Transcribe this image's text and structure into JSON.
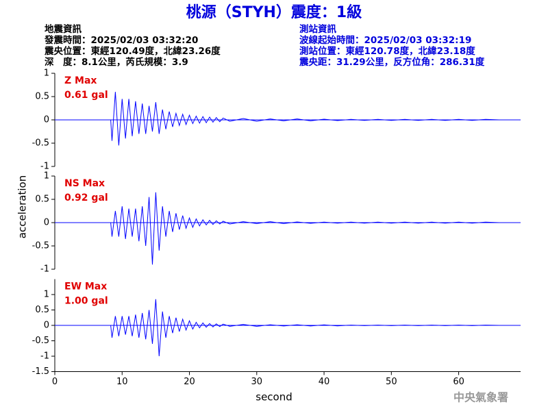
{
  "header": {
    "title": "桃源（STYH）震度：1級",
    "left_info": [
      "地震資訊",
      "發震時間：2025/02/03 03:32:20",
      "震央位置：東經120.49度，北緯23.26度",
      "深　度：8.1公里，芮氏規模：3.9"
    ],
    "right_info": [
      "測站資訊",
      "波線起始時間：2025/02/03 03:32:19",
      "測站位置：東經120.78度，北緯23.18度",
      "震央距：31.29公里，反方位角：286.31度"
    ]
  },
  "y_axis_label": "acceleration",
  "x_axis_label": "second",
  "footer": "中央氣象署",
  "chart_data": [
    {
      "type": "line",
      "annotations": [
        "Z Max",
        "0.61 gal"
      ],
      "annotation_color": "#e00000",
      "color": "#0000ff",
      "x": [
        8.3,
        8.5,
        9,
        9.5,
        10,
        10.5,
        11,
        11.5,
        12,
        12.5,
        13,
        13.5,
        14,
        14.5,
        15,
        15.5,
        16,
        16.5,
        17,
        17.5,
        18,
        18.5,
        19,
        19.5,
        20,
        20.5,
        21,
        21.5,
        22,
        22.5,
        23,
        23.5,
        24,
        24.5,
        25,
        26,
        28,
        30,
        32,
        34,
        36,
        38,
        40,
        42,
        44,
        46,
        48,
        50,
        52,
        54,
        56,
        58,
        60,
        62,
        64,
        66
      ],
      "values": [
        0,
        -0.45,
        0.6,
        -0.55,
        0.45,
        -0.4,
        0.45,
        -0.35,
        0.4,
        -0.3,
        0.35,
        -0.3,
        0.3,
        -0.25,
        0.38,
        -0.3,
        0.22,
        -0.2,
        0.18,
        -0.15,
        0.14,
        -0.12,
        0.12,
        -0.1,
        0.1,
        -0.08,
        0.08,
        -0.07,
        0.07,
        -0.06,
        0.06,
        -0.05,
        0.05,
        -0.04,
        0.04,
        -0.03,
        0.03,
        -0.03,
        0.02,
        -0.02,
        0.02,
        -0.02,
        0.015,
        -0.015,
        0.01,
        -0.01,
        0.01,
        -0.01,
        0.01,
        -0.01,
        0.01,
        -0.01,
        0.01,
        -0.01,
        0.01,
        0
      ],
      "xlim": [
        0,
        69.2
      ],
      "ylim": [
        -1,
        1
      ],
      "yticks": [
        -1,
        -0.5,
        0,
        0.5,
        1
      ]
    },
    {
      "type": "line",
      "annotations": [
        "NS Max",
        "0.92 gal"
      ],
      "annotation_color": "#e00000",
      "color": "#0000ff",
      "x": [
        8.3,
        8.5,
        9,
        9.5,
        10,
        10.5,
        11,
        11.5,
        12,
        12.5,
        13,
        13.5,
        14,
        14.5,
        15,
        15.5,
        16,
        16.5,
        17,
        17.5,
        18,
        18.5,
        19,
        19.5,
        20,
        20.5,
        21,
        21.5,
        22,
        22.5,
        23,
        23.5,
        24,
        24.5,
        25,
        26,
        28,
        30,
        32,
        34,
        36,
        38,
        40,
        42,
        44,
        46,
        48,
        50,
        52,
        54,
        56,
        58,
        60,
        62,
        64,
        66
      ],
      "values": [
        0,
        -0.3,
        0.25,
        -0.3,
        0.35,
        -0.35,
        0.3,
        -0.3,
        0.3,
        -0.4,
        0.35,
        -0.5,
        0.55,
        -0.9,
        0.65,
        -0.6,
        0.35,
        -0.3,
        0.25,
        -0.2,
        0.2,
        -0.15,
        0.15,
        -0.12,
        0.1,
        -0.1,
        0.08,
        -0.07,
        0.06,
        -0.05,
        0.05,
        -0.04,
        0.04,
        -0.03,
        0.03,
        -0.03,
        0.02,
        -0.02,
        0.02,
        -0.02,
        0.015,
        -0.015,
        0.01,
        -0.01,
        0.01,
        -0.01,
        0.01,
        -0.01,
        0.01,
        -0.01,
        0.01,
        -0.01,
        0.01,
        -0.01,
        0.01,
        0
      ],
      "xlim": [
        0,
        69.2
      ],
      "ylim": [
        -1,
        1
      ],
      "yticks": [
        -1,
        -0.5,
        0,
        0.5,
        1
      ]
    },
    {
      "type": "line",
      "annotations": [
        "EW Max",
        "1.00 gal"
      ],
      "annotation_color": "#e00000",
      "color": "#0000ff",
      "x": [
        8.3,
        8.5,
        9,
        9.5,
        10,
        10.5,
        11,
        11.5,
        12,
        12.5,
        13,
        13.5,
        14,
        14.5,
        15,
        15.5,
        16,
        16.5,
        17,
        17.5,
        18,
        18.5,
        19,
        19.5,
        20,
        20.5,
        21,
        21.5,
        22,
        22.5,
        23,
        23.5,
        24,
        24.5,
        25,
        26,
        28,
        30,
        32,
        34,
        36,
        38,
        40,
        42,
        44,
        46,
        48,
        50,
        52,
        54,
        56,
        58,
        60,
        62,
        64,
        66
      ],
      "values": [
        0,
        -0.4,
        0.3,
        -0.35,
        0.3,
        -0.3,
        0.3,
        -0.35,
        0.35,
        -0.4,
        0.4,
        -0.45,
        0.5,
        -0.6,
        0.85,
        -1.0,
        0.45,
        -0.4,
        0.3,
        -0.25,
        0.25,
        -0.2,
        0.2,
        -0.15,
        0.15,
        -0.12,
        0.1,
        -0.08,
        0.08,
        -0.06,
        0.06,
        -0.05,
        0.05,
        -0.04,
        0.04,
        -0.03,
        0.03,
        -0.03,
        0.02,
        -0.02,
        0.02,
        -0.02,
        0.015,
        -0.015,
        0.01,
        -0.01,
        0.01,
        -0.01,
        0.01,
        -0.01,
        0.01,
        -0.01,
        0.01,
        -0.01,
        0.01,
        0
      ],
      "xlim": [
        0,
        69.2
      ],
      "ylim": [
        -1.5,
        1.5
      ],
      "yticks": [
        -1.5,
        -1,
        -0.5,
        0,
        0.5,
        1
      ],
      "xticks": [
        0,
        10,
        20,
        30,
        40,
        50,
        60
      ]
    }
  ]
}
